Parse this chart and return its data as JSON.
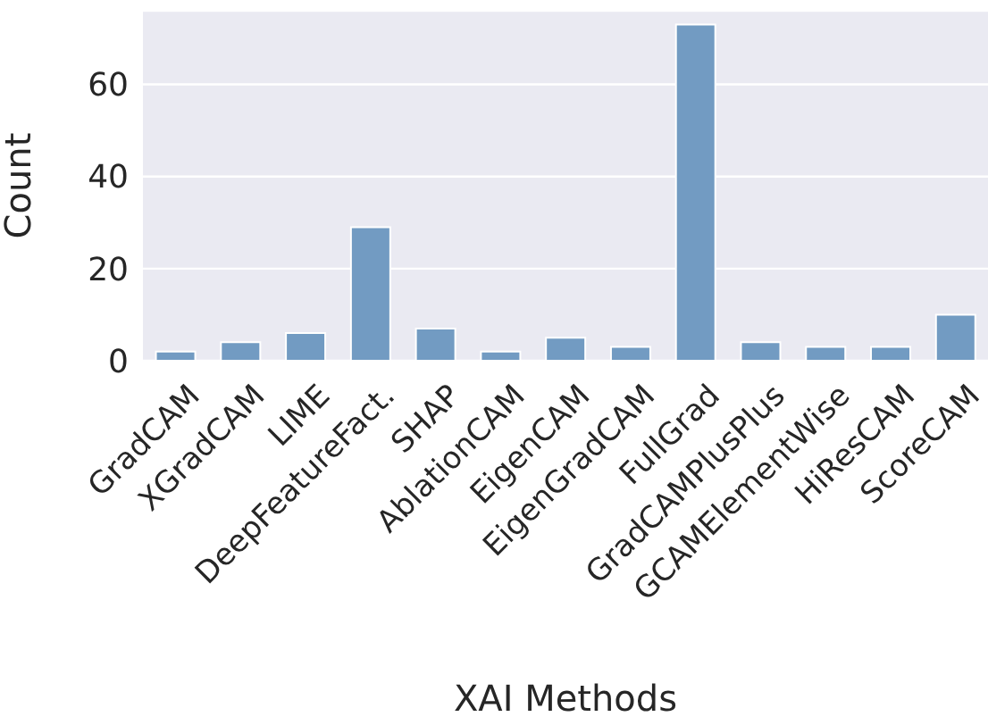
{
  "chart_data": {
    "type": "bar",
    "xlabel": "XAI Methods",
    "ylabel": "Count",
    "categories": [
      "GradCAM",
      "XGradCAM",
      "LIME",
      "DeepFeatureFact.",
      "SHAP",
      "AblationCAM",
      "EigenCAM",
      "EigenGradCAM",
      "FullGrad",
      "GradCAMPlusPlus",
      "GCAMElementWise",
      "HiResCAM",
      "ScoreCAM"
    ],
    "values": [
      2,
      4,
      6,
      29,
      7,
      2,
      5,
      3,
      73,
      4,
      3,
      3,
      10
    ],
    "color": "#729bc2",
    "ylim": [
      0,
      76
    ],
    "yticks": [
      0,
      20,
      40,
      60
    ],
    "grid": "y"
  }
}
